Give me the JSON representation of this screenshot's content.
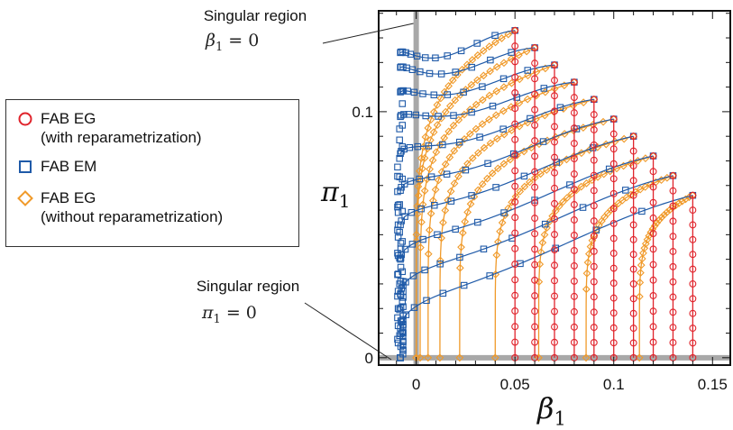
{
  "annotations": {
    "top_label": "Singular region",
    "top_math_var": "β",
    "top_math_sub": "1",
    "top_math_rest": " = 0",
    "bottom_label": "Singular region",
    "bottom_math_var": "π",
    "bottom_math_sub": "1",
    "bottom_math_rest": " = 0"
  },
  "legend": {
    "items": [
      {
        "symbol": "circle",
        "color": "#e0242c",
        "line1": "FAB EG",
        "line2": "(with reparametrization)"
      },
      {
        "symbol": "square",
        "color": "#1f5aa8",
        "line1": "FAB EM",
        "line2": ""
      },
      {
        "symbol": "diamond",
        "color": "#f09a2a",
        "line1": "FAB EG",
        "line2": "(without reparametrization)"
      }
    ]
  },
  "axes": {
    "xlabel_var": "β",
    "xlabel_sub": "1",
    "ylabel_var": "π",
    "ylabel_sub": "1"
  },
  "chart_data": {
    "type": "line",
    "xlabel": "β1",
    "ylabel": "π1",
    "xlim": [
      -0.019,
      0.159
    ],
    "ylim": [
      -0.003,
      0.141
    ],
    "xticks": [
      0,
      0.05,
      0.1,
      0.15
    ],
    "xtick_labels": [
      "0",
      "0.05",
      "0.1",
      "0.15"
    ],
    "yticks": [
      0,
      0.1
    ],
    "ytick_labels": [
      "0",
      "0.1"
    ],
    "singular_lines": {
      "x": 0,
      "y": 0,
      "color": "#a8a8a8"
    },
    "colors": {
      "eg_with": "#e0242c",
      "em": "#1f5aa8",
      "eg_without": "#f09a2a",
      "axis": "#111111"
    },
    "series": [
      {
        "name": "FAB EG (with reparametrization)",
        "marker": "circle",
        "x_start": [
          0.05,
          0.06,
          0.07,
          0.08,
          0.09,
          0.1,
          0.11,
          0.12,
          0.13,
          0.14
        ],
        "y_start": [
          0.133,
          0.126,
          0.119,
          0.112,
          0.105,
          0.097,
          0.09,
          0.082,
          0.074,
          0.066
        ],
        "y_end": 0
      },
      {
        "name": "FAB EM",
        "marker": "square",
        "x_start": [
          0.05,
          0.06,
          0.07,
          0.08,
          0.09,
          0.1,
          0.11,
          0.12,
          0.13,
          0.14
        ],
        "y_start": [
          0.133,
          0.126,
          0.119,
          0.112,
          0.105,
          0.097,
          0.09,
          0.082,
          0.074,
          0.066
        ],
        "x_end": -0.008,
        "y_end": [
          0.124,
          0.118,
          0.108,
          0.098,
          0.083,
          0.068,
          0.054,
          0.04,
          0.026,
          0.012
        ]
      },
      {
        "name": "FAB EG (without reparametrization)",
        "marker": "diamond",
        "x_start": [
          0.05,
          0.06,
          0.07,
          0.08,
          0.09,
          0.1,
          0.11,
          0.12,
          0.13,
          0.14
        ],
        "y_start": [
          0.133,
          0.126,
          0.119,
          0.112,
          0.105,
          0.097,
          0.09,
          0.082,
          0.074,
          0.066
        ],
        "x_end": [
          0.0,
          0.0,
          0.002,
          0.006,
          0.012,
          0.022,
          0.04,
          0.062,
          0.086,
          0.113
        ],
        "y_end": 0
      }
    ]
  }
}
